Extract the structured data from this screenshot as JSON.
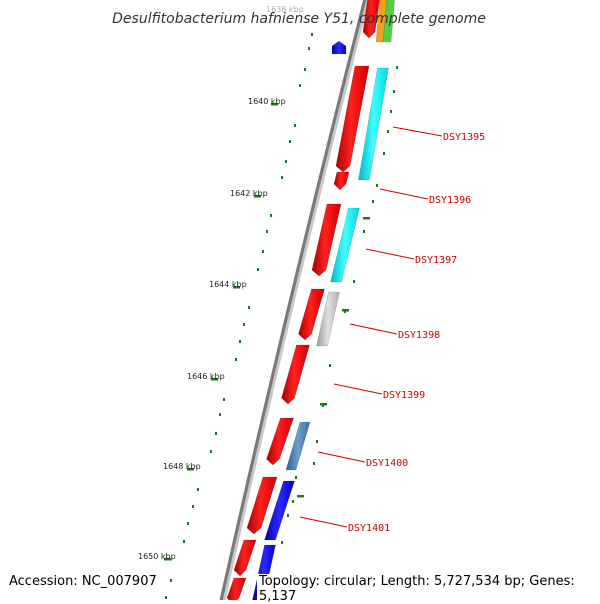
{
  "title": "Desulfitobacterium hafniense Y51, complete genome",
  "accession": "Accession: NC_007907",
  "topology": "Topology: circular; Length: 5,727,534 bp; Genes: 5,137",
  "ruler_labels": [
    "1638 kbp",
    "1640 kbp",
    "1642 kbp",
    "1644 kbp",
    "1646 kbp",
    "1648 kbp",
    "1650 kbp"
  ],
  "gene_labels": [
    "DSY1395",
    "DSY1396",
    "DSY1397",
    "DSY1398",
    "DSY1399",
    "DSY1400",
    "DSY1401"
  ],
  "colors": {
    "backbone": "#7a7a7a",
    "red_gene": "#ff0000",
    "cyan_gene": "#00ffff",
    "gray_gene": "#c0c0c0",
    "steelblue_gene": "#4a7fb0",
    "blue_gene": "#0000ff",
    "tick_green": "#1a7a1a",
    "label_red": "#cc0000"
  }
}
